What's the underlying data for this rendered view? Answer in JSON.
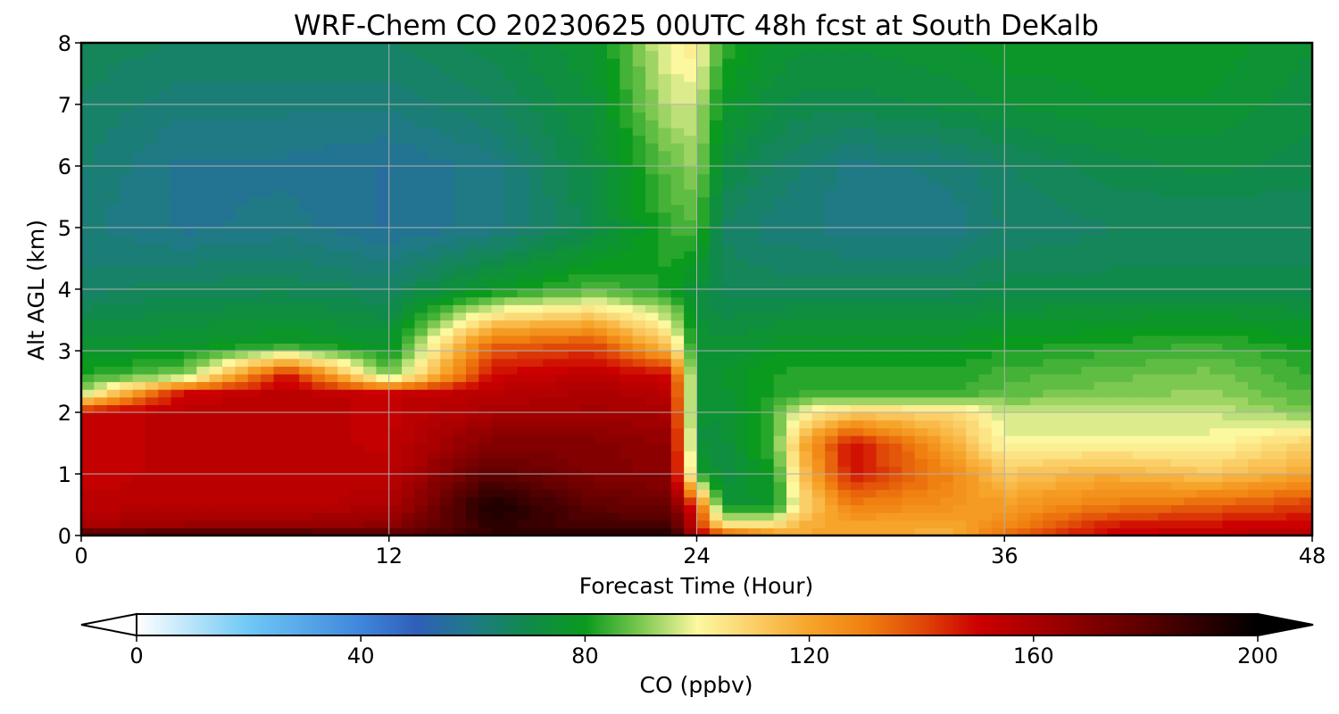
{
  "chart_data": {
    "type": "heatmap",
    "title": "WRF-Chem CO  20230625 00UTC 48h fcst at South DeKalb",
    "xlabel": "Forecast Time (Hour)",
    "ylabel": "Alt AGL (km)",
    "x_ticks": [
      "0",
      "12",
      "24",
      "36",
      "48"
    ],
    "y_ticks": [
      "0",
      "1",
      "2",
      "3",
      "4",
      "5",
      "6",
      "7",
      "8"
    ],
    "xlim": [
      0,
      48
    ],
    "ylim": [
      0,
      8
    ],
    "grid": true,
    "colorbar": {
      "label": "CO  (ppbv)",
      "ticks": [
        "0",
        "40",
        "80",
        "120",
        "160",
        "200"
      ],
      "range": [
        0,
        200
      ],
      "extend": "both",
      "position": "bottom",
      "colors": [
        {
          "value": 0,
          "color": "#ffffff"
        },
        {
          "value": 20,
          "color": "#6ec8f5"
        },
        {
          "value": 40,
          "color": "#3f86dc"
        },
        {
          "value": 50,
          "color": "#2f5fb8"
        },
        {
          "value": 60,
          "color": "#1f7a85"
        },
        {
          "value": 70,
          "color": "#108a4a"
        },
        {
          "value": 80,
          "color": "#0a9a1e"
        },
        {
          "value": 90,
          "color": "#7dc850"
        },
        {
          "value": 100,
          "color": "#fcf8a0"
        },
        {
          "value": 110,
          "color": "#fbcf68"
        },
        {
          "value": 120,
          "color": "#f6a42a"
        },
        {
          "value": 130,
          "color": "#f08010"
        },
        {
          "value": 140,
          "color": "#e04808"
        },
        {
          "value": 150,
          "color": "#cc0000"
        },
        {
          "value": 160,
          "color": "#aa0000"
        },
        {
          "value": 180,
          "color": "#5a0000"
        },
        {
          "value": 200,
          "color": "#000000"
        }
      ]
    },
    "x_hours": [
      0,
      4,
      8,
      12,
      16,
      20,
      23,
      24,
      25,
      27,
      28,
      30,
      34,
      36,
      40,
      44,
      48
    ],
    "y_km": [
      0,
      0.15,
      0.5,
      1,
      1.5,
      2,
      2.3,
      2.6,
      3.1,
      4,
      5,
      6,
      7,
      8
    ],
    "co_ppbv": [
      [
        190,
        190,
        190,
        182,
        188,
        195,
        194,
        158,
        145,
        125,
        118,
        120,
        118,
        135,
        150,
        155,
        157
      ],
      [
        160,
        165,
        165,
        168,
        190,
        185,
        185,
        150,
        108,
        108,
        118,
        120,
        118,
        128,
        148,
        150,
        152
      ],
      [
        155,
        155,
        155,
        158,
        195,
        178,
        175,
        140,
        76,
        76,
        105,
        130,
        125,
        122,
        130,
        135,
        142
      ],
      [
        152,
        155,
        155,
        155,
        180,
        170,
        168,
        80,
        72,
        80,
        110,
        148,
        128,
        112,
        118,
        112,
        120
      ],
      [
        152,
        155,
        155,
        153,
        170,
        170,
        166,
        74,
        72,
        85,
        115,
        150,
        118,
        100,
        100,
        100,
        110
      ],
      [
        152,
        155,
        155,
        153,
        160,
        162,
        160,
        74,
        74,
        85,
        100,
        110,
        108,
        96,
        96,
        96,
        90
      ],
      [
        95,
        152,
        155,
        153,
        156,
        160,
        156,
        75,
        75,
        82,
        84,
        84,
        84,
        88,
        90,
        92,
        86
      ],
      [
        82,
        90,
        150,
        88,
        150,
        155,
        150,
        76,
        76,
        82,
        82,
        82,
        82,
        85,
        88,
        90,
        84
      ],
      [
        75,
        76,
        80,
        76,
        135,
        140,
        110,
        75,
        74,
        77,
        78,
        78,
        78,
        80,
        82,
        84,
        80
      ],
      [
        65,
        68,
        68,
        66,
        78,
        86,
        80,
        74,
        68,
        68,
        68,
        68,
        68,
        70,
        70,
        70,
        70
      ],
      [
        62,
        58,
        60,
        56,
        60,
        70,
        84,
        86,
        66,
        62,
        62,
        60,
        60,
        64,
        66,
        66,
        66
      ],
      [
        64,
        58,
        58,
        56,
        60,
        72,
        88,
        92,
        72,
        66,
        64,
        60,
        62,
        66,
        70,
        72,
        70
      ],
      [
        66,
        62,
        62,
        62,
        66,
        74,
        96,
        96,
        78,
        72,
        70,
        70,
        72,
        74,
        76,
        76,
        72
      ],
      [
        68,
        66,
        66,
        66,
        70,
        76,
        100,
        104,
        84,
        76,
        74,
        74,
        76,
        78,
        78,
        78,
        74
      ]
    ]
  }
}
